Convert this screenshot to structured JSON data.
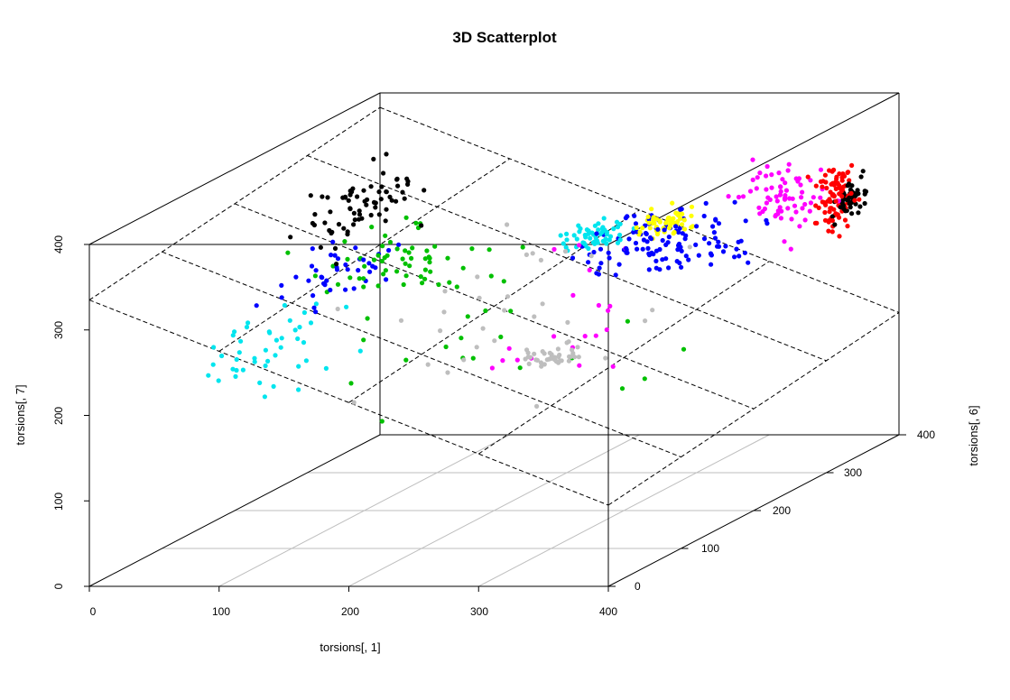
{
  "chart_data": {
    "type": "scatter",
    "title": "3D Scatterplot",
    "xlabel": "torsions[, 1]",
    "ylabel": "torsions[, 6]",
    "zlabel": "torsions[, 7]",
    "xlim": [
      0,
      400
    ],
    "ylim": [
      0,
      400
    ],
    "zlim": [
      0,
      400
    ],
    "x_ticks": [
      "0",
      "100",
      "200",
      "300",
      "400"
    ],
    "y_ticks": [
      "0",
      "100",
      "200",
      "300",
      "400"
    ],
    "z_ticks": [
      "0",
      "100",
      "200",
      "300",
      "400"
    ],
    "grid": true,
    "plane_lines": "dashed",
    "colors": {
      "black": "#000000",
      "green": "#00c000",
      "blue": "#0000ff",
      "cyan": "#00e5ee",
      "yellow": "#ffff00",
      "magenta": "#ff00ff",
      "red": "#ff0000",
      "gray": "#bebebe"
    },
    "clusters": [
      {
        "color": "black",
        "n": 70,
        "x": [
          20,
          130
        ],
        "y": [
          150,
          320
        ],
        "z": [
          280,
          400
        ]
      },
      {
        "color": "green",
        "n": 60,
        "x": [
          30,
          200
        ],
        "y": [
          150,
          320
        ],
        "z": [
          220,
          330
        ]
      },
      {
        "color": "blue",
        "n": 40,
        "x": [
          20,
          150
        ],
        "y": [
          120,
          280
        ],
        "z": [
          230,
          320
        ]
      },
      {
        "color": "cyan",
        "n": 45,
        "x": [
          20,
          140
        ],
        "y": [
          10,
          220
        ],
        "z": [
          150,
          290
        ]
      },
      {
        "color": "cyan",
        "n": 55,
        "x": [
          230,
          300
        ],
        "y": [
          180,
          260
        ],
        "z": [
          290,
          330
        ]
      },
      {
        "color": "yellow",
        "n": 55,
        "x": [
          280,
          340
        ],
        "y": [
          200,
          270
        ],
        "z": [
          300,
          340
        ]
      },
      {
        "color": "gray",
        "n": 40,
        "x": [
          280,
          330
        ],
        "y": [
          60,
          130
        ],
        "z": [
          210,
          245
        ]
      },
      {
        "color": "blue",
        "n": 120,
        "x": [
          230,
          400
        ],
        "y": [
          150,
          320
        ],
        "z": [
          260,
          340
        ]
      },
      {
        "color": "magenta",
        "n": 70,
        "x": [
          320,
          400
        ],
        "y": [
          260,
          360
        ],
        "z": [
          250,
          390
        ]
      },
      {
        "color": "red",
        "n": 90,
        "x": [
          370,
          400
        ],
        "y": [
          310,
          370
        ],
        "z": [
          250,
          360
        ]
      },
      {
        "color": "black",
        "n": 50,
        "x": [
          380,
          400
        ],
        "y": [
          320,
          380
        ],
        "z": [
          270,
          330
        ]
      },
      {
        "color": "gray",
        "n": 30,
        "x": [
          100,
          400
        ],
        "y": [
          0,
          300
        ],
        "z": [
          120,
          380
        ]
      },
      {
        "color": "green",
        "n": 20,
        "x": [
          100,
          400
        ],
        "y": [
          0,
          300
        ],
        "z": [
          140,
          330
        ]
      },
      {
        "color": "magenta",
        "n": 20,
        "x": [
          200,
          400
        ],
        "y": [
          20,
          260
        ],
        "z": [
          150,
          380
        ]
      }
    ]
  }
}
